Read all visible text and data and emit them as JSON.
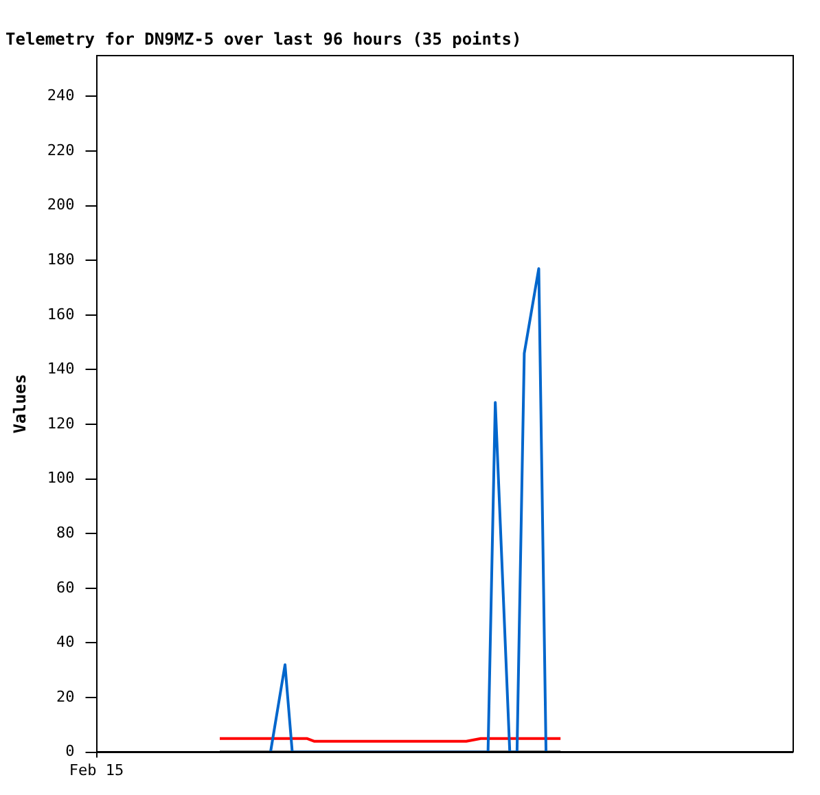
{
  "chart_data": {
    "type": "line",
    "title": "Telemetry for DN9MZ-5 over last 96 hours (35 points)",
    "ylabel": "Values",
    "ylim": [
      0,
      255
    ],
    "yticks": [
      0,
      20,
      40,
      60,
      80,
      100,
      120,
      140,
      160,
      180,
      200,
      220,
      240
    ],
    "legend": false,
    "marker": "none",
    "line_style": "solid",
    "categories": [
      "Feb 15",
      null,
      null,
      null,
      null,
      null,
      null,
      null,
      null,
      null,
      null,
      null,
      null,
      null,
      null,
      null,
      null,
      null,
      null,
      null,
      null,
      null,
      null,
      null,
      null,
      null,
      null,
      null,
      null,
      null,
      null,
      null,
      null,
      null,
      null,
      null,
      null,
      null,
      null,
      null,
      null,
      null,
      null,
      null,
      null,
      null,
      null,
      null,
      null,
      null,
      null,
      null,
      null,
      null,
      null,
      null,
      null,
      null,
      null,
      null,
      null,
      null,
      null,
      null,
      null,
      null,
      null,
      null,
      null,
      null,
      null,
      null,
      null,
      null,
      null,
      null,
      null,
      null,
      null,
      null,
      null,
      null,
      null,
      null,
      null,
      null,
      null,
      null,
      null,
      null,
      null,
      null,
      null,
      null,
      null,
      null,
      null
    ],
    "series": [
      {
        "color": "#0066cc",
        "values": [
          null,
          null,
          null,
          null,
          null,
          null,
          null,
          null,
          null,
          null,
          null,
          null,
          null,
          null,
          null,
          null,
          null,
          null,
          null,
          null,
          null,
          null,
          null,
          null,
          0,
          null,
          32,
          0,
          null,
          null,
          null,
          null,
          null,
          null,
          null,
          null,
          null,
          null,
          null,
          null,
          null,
          null,
          null,
          null,
          null,
          null,
          null,
          null,
          null,
          null,
          null,
          null,
          null,
          null,
          0,
          128,
          null,
          0,
          0,
          146,
          null,
          177,
          0,
          null,
          null,
          null,
          null,
          null,
          null,
          null,
          null,
          null,
          null,
          null,
          null,
          null,
          null,
          null,
          null,
          null,
          null,
          null,
          null,
          null,
          null,
          null,
          null,
          null,
          null,
          null,
          null,
          null,
          null,
          null,
          null,
          null,
          null
        ]
      },
      {
        "color": "#ff0000",
        "values": [
          null,
          null,
          null,
          null,
          null,
          null,
          null,
          null,
          null,
          null,
          null,
          null,
          null,
          null,
          null,
          null,
          null,
          5,
          null,
          null,
          null,
          null,
          null,
          null,
          null,
          null,
          null,
          null,
          null,
          5,
          4,
          null,
          null,
          null,
          null,
          null,
          null,
          null,
          null,
          null,
          null,
          null,
          null,
          null,
          null,
          null,
          null,
          null,
          null,
          null,
          null,
          4,
          null,
          5,
          null,
          null,
          null,
          null,
          null,
          null,
          null,
          null,
          null,
          null,
          5,
          null,
          null,
          null,
          null,
          null,
          null,
          null,
          null,
          null,
          null,
          null,
          null,
          null,
          null,
          null,
          null,
          null,
          null,
          null,
          null,
          null,
          null,
          null,
          null,
          null,
          null,
          null,
          null,
          null,
          null,
          null,
          null
        ]
      },
      {
        "color": "#000000",
        "values": [
          null,
          null,
          null,
          null,
          null,
          null,
          null,
          null,
          null,
          null,
          null,
          null,
          null,
          null,
          null,
          null,
          null,
          0,
          null,
          null,
          null,
          null,
          null,
          null,
          null,
          null,
          null,
          null,
          null,
          null,
          null,
          null,
          null,
          null,
          null,
          null,
          null,
          null,
          null,
          null,
          null,
          null,
          null,
          null,
          null,
          null,
          null,
          null,
          null,
          null,
          null,
          null,
          null,
          null,
          null,
          null,
          null,
          null,
          null,
          null,
          null,
          null,
          null,
          null,
          0,
          null,
          null,
          null,
          null,
          null,
          null,
          null,
          null,
          null,
          null,
          null,
          null,
          null,
          null,
          null,
          null,
          null,
          null,
          null,
          null,
          null,
          null,
          null,
          null,
          null,
          null,
          null,
          null,
          null,
          null,
          null,
          null
        ]
      }
    ]
  }
}
